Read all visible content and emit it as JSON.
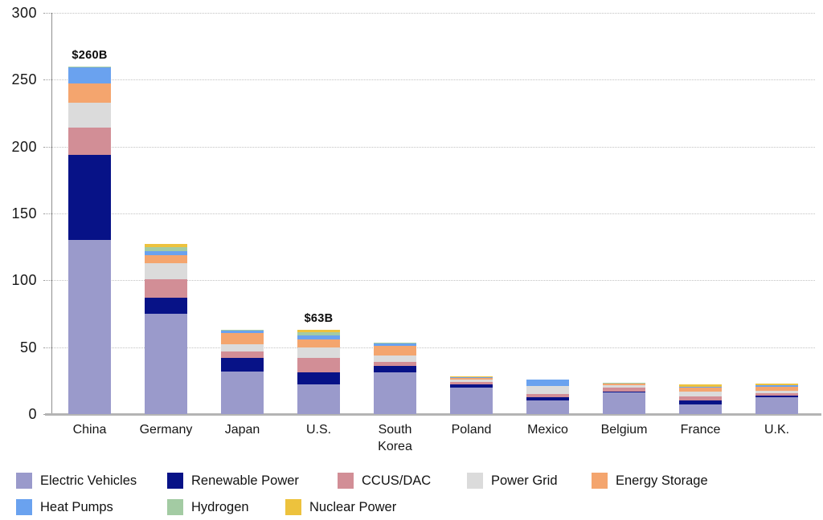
{
  "chart_data": {
    "type": "bar",
    "subtype": "stacked",
    "unit": "billion USD",
    "categories": [
      "China",
      "Germany",
      "Japan",
      "U.S.",
      "South Korea",
      "Poland",
      "Mexico",
      "Belgium",
      "France",
      "U.K."
    ],
    "series": [
      {
        "name": "Electric Vehicles",
        "color": "#9a9acb",
        "values": [
          130,
          75,
          32,
          22,
          31,
          20,
          10,
          16,
          7,
          12.5
        ]
      },
      {
        "name": "Renewable Power",
        "color": "#071287",
        "values": [
          64,
          12,
          10,
          9,
          5,
          2,
          2.5,
          1,
          3,
          1.5
        ]
      },
      {
        "name": "CCUS/DAC",
        "color": "#d28e96",
        "values": [
          20,
          14,
          4.5,
          11,
          3,
          2,
          2.5,
          3,
          3,
          1.5
        ]
      },
      {
        "name": "Power Grid",
        "color": "#dbdbdb",
        "values": [
          19,
          12,
          5.5,
          8,
          4.5,
          1.5,
          6,
          1.5,
          4,
          2
        ]
      },
      {
        "name": "Energy Storage",
        "color": "#f4a56e",
        "values": [
          14,
          6,
          8.5,
          6,
          7.5,
          1.5,
          0,
          1.5,
          2.5,
          3
        ]
      },
      {
        "name": "Heat Pumps",
        "color": "#6aa2ef",
        "values": [
          12,
          3,
          2,
          3,
          2,
          0.5,
          5,
          0,
          1,
          1
        ]
      },
      {
        "name": "Hydrogen",
        "color": "#a3cba3",
        "values": [
          1,
          3,
          0.5,
          2,
          0.5,
          0,
          0,
          0.5,
          0,
          0
        ]
      },
      {
        "name": "Nuclear Power",
        "color": "#edc23d",
        "values": [
          0,
          2,
          0,
          2,
          0,
          0.5,
          0,
          0,
          2,
          1.5
        ]
      }
    ],
    "totals_shown": {
      "China": "$260B",
      "U.S.": "$63B"
    },
    "annotations": [
      {
        "category": "China",
        "text": "$260B"
      },
      {
        "category": "U.S.",
        "text": "$63B"
      }
    ],
    "y_axis": {
      "ticks": [
        0,
        50,
        100,
        150,
        200,
        250,
        300
      ],
      "max": 300,
      "gridlines": "dotted"
    },
    "legend_position": "bottom",
    "title": "",
    "xlabel": "",
    "ylabel": ""
  },
  "colors": {
    "background": "#ffffff",
    "gridline": "#c2c2c2",
    "axis": "#b4b4b4",
    "text": "#161616"
  }
}
